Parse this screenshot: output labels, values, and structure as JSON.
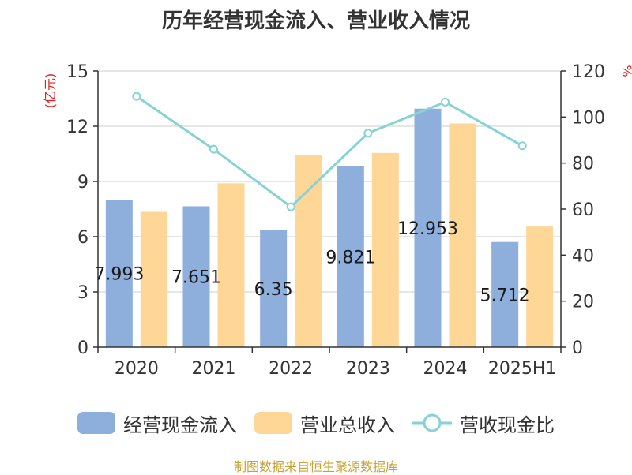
{
  "title": "历年经营现金流入、营业收入情况",
  "source": "制图数据来自恒生聚源数据库",
  "chart_data": {
    "type": "bar",
    "title": "历年经营现金流入、营业收入情况",
    "categories": [
      "2020",
      "2021",
      "2022",
      "2023",
      "2024",
      "2025H1"
    ],
    "y_left": {
      "unit": "(亿元)",
      "ylim": [
        0,
        15
      ],
      "ticks": [
        "0",
        "3",
        "6",
        "9",
        "12",
        "15"
      ]
    },
    "y_right": {
      "unit": "%",
      "ylim": [
        0,
        120
      ],
      "ticks": [
        "0",
        "20",
        "40",
        "60",
        "80",
        "100",
        "120"
      ]
    },
    "grid": true,
    "legend_position": "bottom",
    "series": [
      {
        "name": "经营现金流入",
        "type": "bar",
        "axis": "left",
        "color": "#8eaedb",
        "values": [
          7.993,
          7.651,
          6.35,
          9.821,
          12.953,
          5.712
        ],
        "data_labels": [
          "7.993",
          "7.651",
          "6.35",
          "9.821",
          "12.953",
          "5.712"
        ]
      },
      {
        "name": "营业总收入",
        "type": "bar",
        "axis": "left",
        "color": "#fed797",
        "values": [
          7.35,
          8.9,
          10.45,
          10.55,
          12.15,
          6.55
        ]
      },
      {
        "name": "营收现金比",
        "type": "line",
        "axis": "right",
        "color": "#86d3d6",
        "values": [
          109,
          86,
          61,
          93,
          106.5,
          87.5
        ]
      }
    ]
  }
}
